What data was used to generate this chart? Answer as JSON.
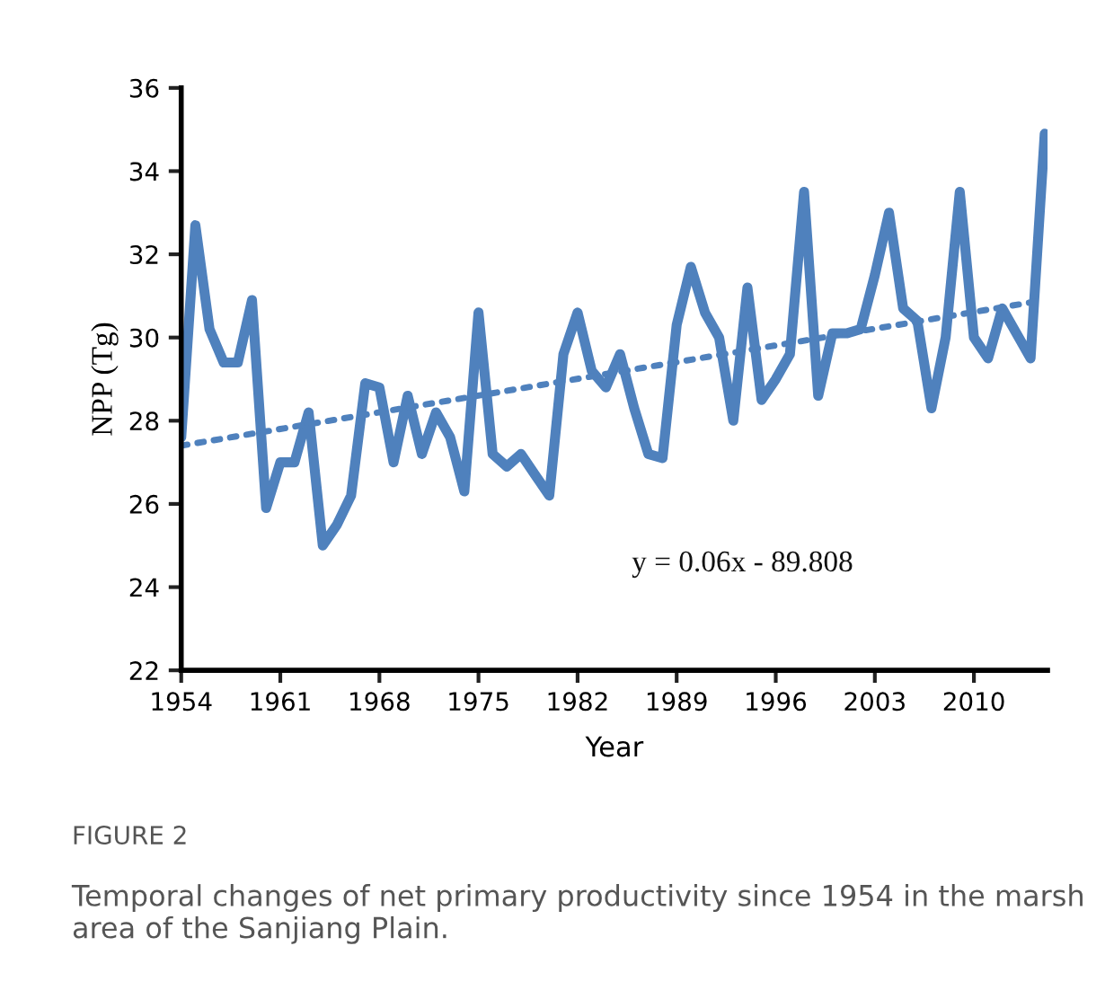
{
  "chart_data": {
    "type": "line",
    "xlabel": "Year",
    "ylabel": "NPP (Tg)",
    "x": [
      1954,
      1955,
      1956,
      1957,
      1958,
      1959,
      1960,
      1961,
      1962,
      1963,
      1964,
      1965,
      1966,
      1967,
      1968,
      1969,
      1970,
      1971,
      1972,
      1973,
      1974,
      1975,
      1976,
      1977,
      1978,
      1979,
      1980,
      1981,
      1982,
      1983,
      1984,
      1985,
      1986,
      1987,
      1988,
      1989,
      1990,
      1991,
      1992,
      1993,
      1994,
      1995,
      1996,
      1997,
      1998,
      1999,
      2000,
      2001,
      2002,
      2003,
      2004,
      2005,
      2006,
      2007,
      2008,
      2009,
      2010,
      2011,
      2012,
      2013,
      2014,
      2015
    ],
    "series": [
      {
        "color": "#4f81bd",
        "line_style": "solid",
        "values": [
          27.6,
          32.7,
          30.2,
          29.4,
          29.4,
          30.9,
          25.9,
          27.0,
          27.0,
          28.2,
          25.0,
          25.5,
          26.2,
          28.9,
          28.8,
          27.0,
          28.6,
          27.2,
          28.2,
          27.6,
          26.3,
          30.6,
          27.2,
          26.9,
          27.2,
          26.7,
          26.2,
          29.6,
          30.6,
          29.2,
          28.8,
          29.6,
          28.3,
          27.2,
          27.1,
          30.3,
          31.7,
          30.6,
          30.0,
          28.0,
          31.2,
          28.5,
          29.0,
          29.6,
          33.5,
          28.6,
          30.1,
          30.1,
          30.2,
          31.5,
          33.0,
          30.7,
          30.4,
          28.3,
          30.0,
          33.5,
          30.0,
          29.5,
          30.7,
          30.1,
          29.5,
          34.9
        ]
      },
      {
        "type": "line",
        "color": "#4f81bd",
        "line_style": "dotted",
        "x": [
          1954,
          2015
        ],
        "values": [
          27.4,
          30.9
        ]
      }
    ],
    "xlim": [
      1954,
      2015.2
    ],
    "xticks": [
      1954,
      1961,
      1968,
      1975,
      1982,
      1989,
      1996,
      2003,
      2010
    ],
    "ylim": [
      22,
      36
    ],
    "yticks": [
      22,
      24,
      26,
      28,
      30,
      32,
      34,
      36
    ],
    "grid": false,
    "legend": false,
    "marker": "none",
    "annotations": [
      "y = 0.06x - 89.808",
      "FIGURE 2",
      "Temporal changes of net primary productivity since 1954 in the marsh area of the Sanjiang Plain."
    ]
  }
}
